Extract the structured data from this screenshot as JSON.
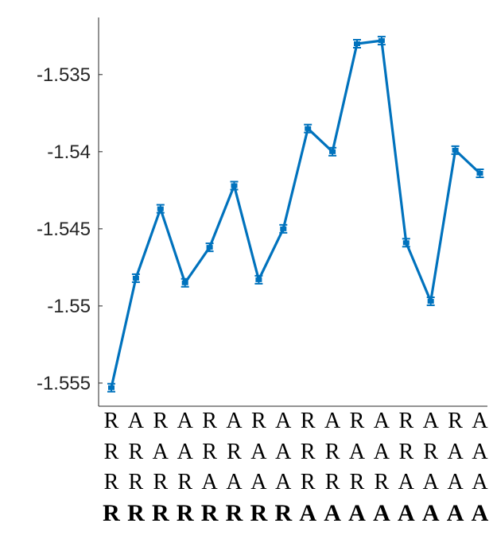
{
  "chart_data": {
    "type": "line",
    "title": "",
    "xlabel": "",
    "ylabel": "",
    "ylim": [
      -1.5565,
      -1.5313
    ],
    "yticks": [
      "-1.535",
      "-1.54",
      "-1.545",
      "-1.55",
      "-1.555"
    ],
    "ytick_values": [
      -1.535,
      -1.54,
      -1.545,
      -1.55,
      -1.555
    ],
    "grid": false,
    "x_label_rows": [
      [
        "R",
        "A",
        "R",
        "A",
        "R",
        "A",
        "R",
        "A",
        "R",
        "A",
        "R",
        "A",
        "R",
        "A",
        "R",
        "A"
      ],
      [
        "R",
        "R",
        "A",
        "A",
        "R",
        "R",
        "A",
        "A",
        "R",
        "R",
        "A",
        "A",
        "R",
        "R",
        "A",
        "A"
      ],
      [
        "R",
        "R",
        "R",
        "R",
        "A",
        "A",
        "A",
        "A",
        "R",
        "R",
        "R",
        "R",
        "A",
        "A",
        "A",
        "A"
      ],
      [
        "R",
        "R",
        "R",
        "R",
        "R",
        "R",
        "R",
        "R",
        "A",
        "A",
        "A",
        "A",
        "A",
        "A",
        "A",
        "A"
      ]
    ],
    "series": [
      {
        "color": "#0072BD",
        "values": [
          -1.5553,
          -1.5482,
          -1.5437,
          -1.5485,
          -1.5462,
          -1.5422,
          -1.5483,
          -1.545,
          -1.5385,
          -1.54,
          -1.533,
          -1.5328,
          -1.5459,
          -1.5497,
          -1.5399,
          -1.5414
        ]
      }
    ]
  }
}
